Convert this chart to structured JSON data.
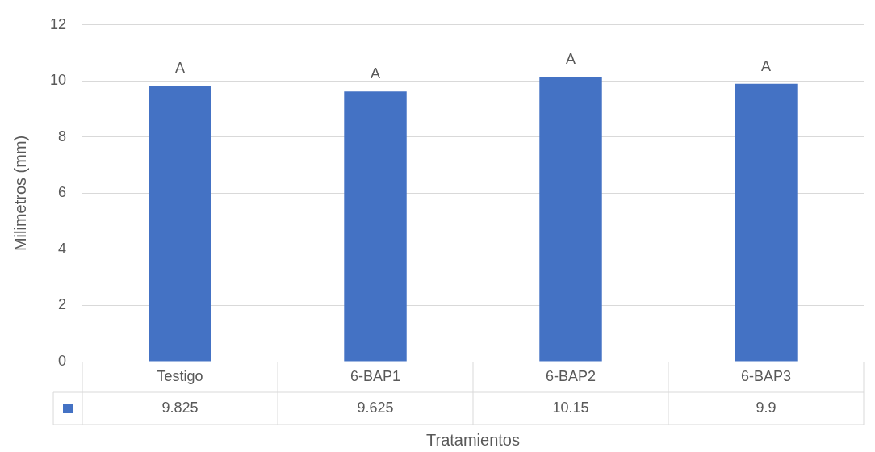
{
  "chart_data": {
    "type": "bar",
    "xlabel": "Tratamientos",
    "ylabel": "Milimetros (mm)",
    "categories": [
      "Testigo",
      "6-BAP1",
      "6-BAP2",
      "6-BAP3"
    ],
    "values": [
      9.825,
      9.625,
      10.15,
      9.9
    ],
    "color": "#4472c4",
    "ylim": [
      0,
      12
    ],
    "yticks": [
      0,
      2,
      4,
      6,
      8,
      10,
      12
    ],
    "grid": "y",
    "data_labels": true,
    "annotations": [
      {
        "text": "A",
        "x": "Testigo",
        "y": 9.825
      },
      {
        "text": "A",
        "x": "6-BAP1",
        "y": 9.625
      },
      {
        "text": "A",
        "x": "6-BAP2",
        "y": 10.15
      },
      {
        "text": "A",
        "x": "6-BAP3",
        "y": 9.9
      }
    ]
  }
}
